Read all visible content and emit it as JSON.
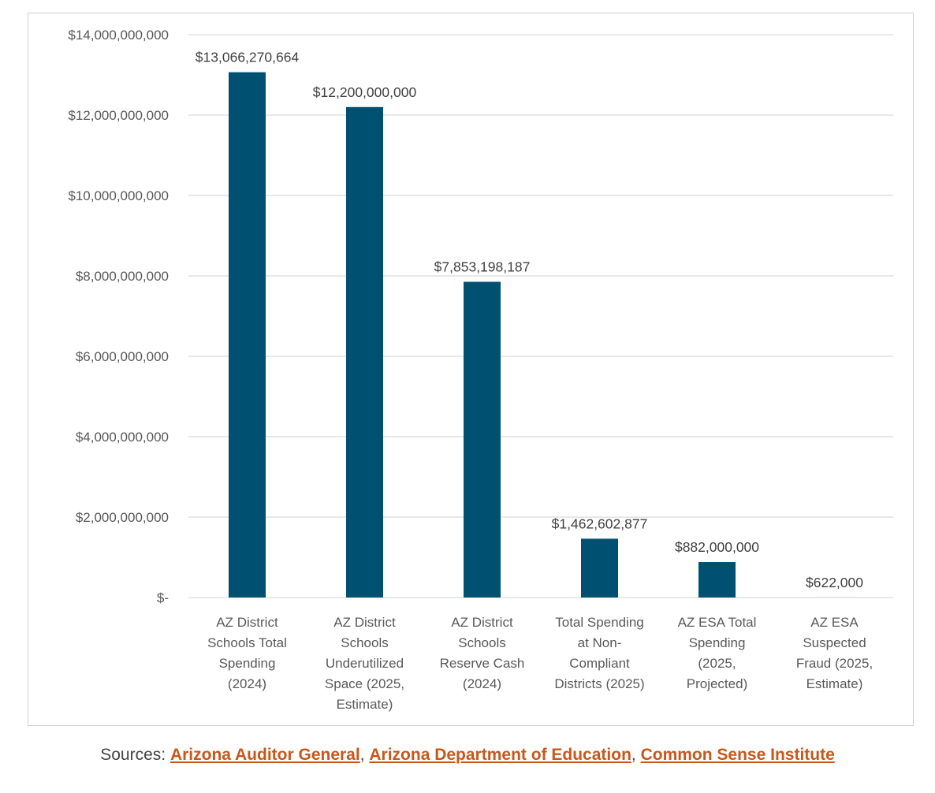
{
  "colors": {
    "bar": "#005072",
    "grid": "#d9d9d9",
    "link": "#c8571b",
    "text": "#444444"
  },
  "chart_data": {
    "type": "bar",
    "title": "",
    "xlabel": "",
    "ylabel": "",
    "ylim": [
      0,
      14000000000
    ],
    "y_ticks": [
      {
        "value": 0,
        "label": "$-"
      },
      {
        "value": 2000000000,
        "label": "$2,000,000,000"
      },
      {
        "value": 4000000000,
        "label": "$4,000,000,000"
      },
      {
        "value": 6000000000,
        "label": "$6,000,000,000"
      },
      {
        "value": 8000000000,
        "label": "$8,000,000,000"
      },
      {
        "value": 10000000000,
        "label": "$10,000,000,000"
      },
      {
        "value": 12000000000,
        "label": "$12,000,000,000"
      },
      {
        "value": 14000000000,
        "label": "$14,000,000,000"
      }
    ],
    "grid": true,
    "legend": "none",
    "categories": [
      [
        "AZ District",
        "Schools Total",
        "Spending",
        "(2024)"
      ],
      [
        "AZ District",
        "Schools",
        "Underutilized",
        "Space (2025,",
        "Estimate)"
      ],
      [
        "AZ District",
        "Schools",
        "Reserve Cash",
        "(2024)"
      ],
      [
        "Total Spending",
        "at Non-",
        "Compliant",
        "Districts (2025)"
      ],
      [
        "AZ ESA Total",
        "Spending",
        "(2025,",
        "Projected)"
      ],
      [
        "AZ ESA",
        "Suspected",
        "Fraud (2025,",
        "Estimate)"
      ]
    ],
    "values": [
      13066270664,
      12200000000,
      7853198187,
      1462602877,
      882000000,
      622000
    ],
    "data_labels": [
      "$13,066,270,664",
      "$12,200,000,000",
      "$7,853,198,187",
      "$1,462,602,877",
      "$882,000,000",
      "$622,000"
    ]
  },
  "sources": {
    "prefix": "Sources: ",
    "links": [
      "Arizona Auditor General",
      "Arizona Department of Education",
      "Common Sense Institute"
    ],
    "separator": ", "
  }
}
